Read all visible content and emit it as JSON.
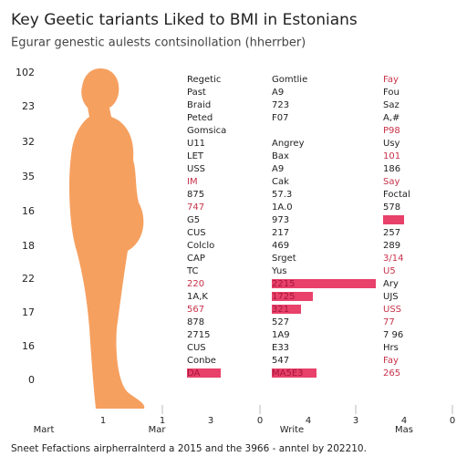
{
  "header": {
    "title": "Key Geetic tariants Liked to BMI in Estonians",
    "subtitle": "Egurar genestic aulests contsinollation (hherrber)"
  },
  "left_labels": [
    "102",
    "23",
    "32",
    "35",
    "16",
    "18",
    "22",
    "17",
    "16",
    "0"
  ],
  "bottom_numbers": [
    "1",
    "1",
    "3",
    "0",
    "4",
    "3",
    "4",
    "0"
  ],
  "bottom_words": [
    "Mart",
    "Mar",
    "Write",
    "Mas"
  ],
  "table": {
    "rows": [
      [
        "Regetic",
        "Gomtlie",
        {
          "text": "Fay",
          "color": "#c8324a"
        }
      ],
      [
        "Past",
        "A9",
        "Fou"
      ],
      [
        "Braid",
        "723",
        "Saz"
      ],
      [
        "Peted",
        "F07",
        "A,#"
      ],
      [
        "Gomsica",
        null,
        {
          "text": "P98",
          "color": "#c8324a"
        }
      ],
      [
        "U11",
        "Angrey",
        "Usy"
      ],
      [
        "LET",
        "Bax",
        {
          "text": "101",
          "color": "#c8324a"
        }
      ],
      [
        "USS",
        "A9",
        "186"
      ],
      [
        {
          "text": "IM",
          "color": "#c8324a"
        },
        "Cak",
        {
          "text": "Say",
          "color": "#c8324a"
        }
      ],
      [
        "875",
        "57.3",
        "Foctal"
      ],
      [
        {
          "text": "747",
          "color": "#c8324a"
        },
        "1A.0",
        "578"
      ],
      [
        "G5",
        "973",
        {
          "bar": "#e8416a"
        }
      ],
      [
        "CUS",
        "217",
        "257"
      ],
      [
        "Colclo",
        "469",
        "289"
      ],
      [
        "CAP",
        "Srget",
        {
          "text": "3/14",
          "color": "#c8324a"
        }
      ],
      [
        "TC",
        "Yus",
        {
          "text": "U5",
          "color": "#c8324a"
        }
      ],
      [
        {
          "text": "220",
          "color": "#c8324a"
        },
        {
          "text": "2215",
          "bar": "#e8416a"
        },
        "Ary"
      ],
      [
        "1A,K",
        {
          "text": "1725",
          "bar": "#e8416a"
        },
        "UJS"
      ],
      [
        {
          "text": "567",
          "color": "#c8324a"
        },
        {
          "text": "321",
          "bar": "#e8416a"
        },
        {
          "text": "USS",
          "color": "#c8324a"
        }
      ],
      [
        "878",
        "527",
        {
          "text": "77",
          "color": "#c8324a"
        }
      ],
      [
        "2715",
        "1A9",
        "7 96"
      ],
      [
        "CUS",
        "E33",
        "Hrs"
      ],
      [
        "Conbe",
        "547",
        {
          "text": "Fay",
          "color": "#c8324a"
        }
      ],
      [
        {
          "text": "DA",
          "bar": "#e8416a"
        },
        {
          "text": "MA5E3",
          "bar": "#e8416a"
        },
        {
          "text": "265",
          "color": "#c8324a"
        }
      ]
    ]
  },
  "footer": "Sneet Fefactions airpherralnterd a 2015 and the 3966 - anntel by 202210."
}
